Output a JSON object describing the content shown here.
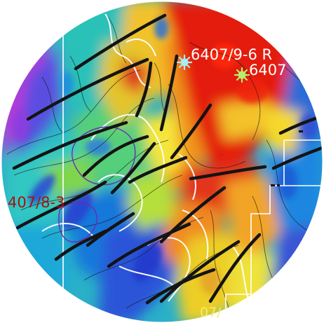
{
  "map": {
    "wells": [
      {
        "label": "6407/9-6 R",
        "symbol": "well-star",
        "color": "#a8ecf5"
      },
      {
        "label": "6407",
        "symbol": "well-star",
        "color": "#b6f06a"
      }
    ],
    "labels": {
      "west": "407/8-3",
      "south": "07/"
    },
    "colors": {
      "high": "#e4130c",
      "mid": "#f0e21c",
      "low": "#1f9fe0",
      "deep": "#2430c8",
      "lineament": "#141414",
      "contour_major": "#ffffff",
      "contour_minor": "#1a1a1a",
      "outline": "#6a2ab8"
    }
  }
}
